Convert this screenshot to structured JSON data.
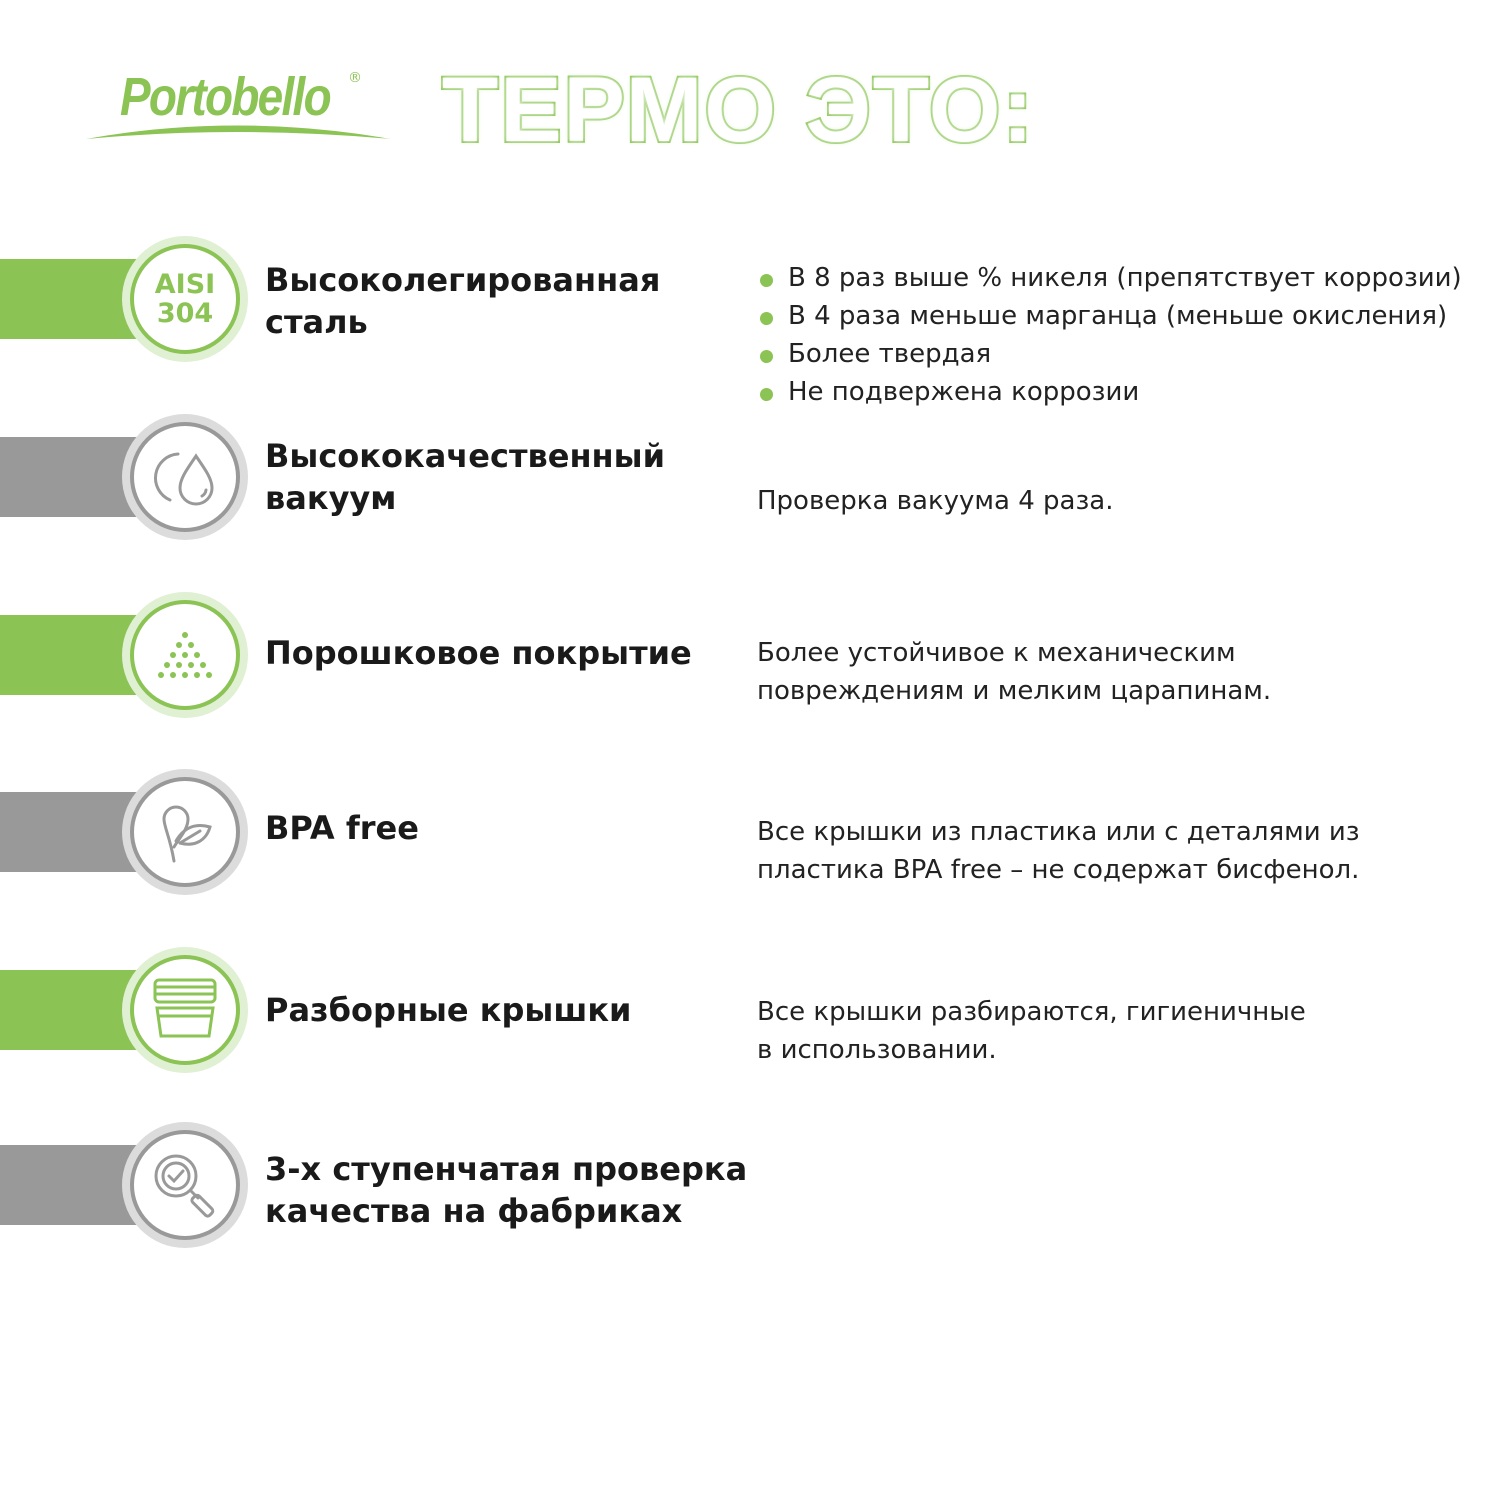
{
  "brand": {
    "logo": "Portobello",
    "registered": "®"
  },
  "title": "ТЕРМО ЭТО:",
  "colors": {
    "green": "#8BC354",
    "green_light": "#DFF0D3",
    "gray": "#999999",
    "gray_light": "#DCDCDC"
  },
  "features": [
    {
      "icon": "aisi-304-badge",
      "icon_text": [
        "AISI",
        "304"
      ],
      "color": "green",
      "heading": [
        "Высоколегированная",
        "сталь"
      ],
      "bullets": [
        "В 8 раз выше % никеля (препятствует коррозии)",
        "В 4 раза меньше марганца (меньше окисления)",
        "Более твердая",
        "Не подвержена коррозии"
      ]
    },
    {
      "icon": "vacuum-drop-icon",
      "color": "gray",
      "heading": [
        "Высококачественный",
        "вакуум"
      ],
      "description": [
        "Проверка вакуума 4 раза."
      ]
    },
    {
      "icon": "powder-dots-icon",
      "color": "green",
      "heading": [
        "Порошковое покрытие"
      ],
      "description": [
        "Более устойчивое к механическим",
        "повреждениям и мелким царапинам."
      ]
    },
    {
      "icon": "leaf-icon",
      "color": "gray",
      "heading": [
        "BPA free"
      ],
      "description": [
        "Все крышки из пластика или с деталями из",
        "пластика BPA free – не содержат бисфенол."
      ]
    },
    {
      "icon": "lid-icon",
      "color": "green",
      "heading": [
        "Разборные крышки"
      ],
      "description": [
        "Все крышки разбираются, гигиеничные",
        "в использовании."
      ]
    },
    {
      "icon": "magnifier-check-icon",
      "color": "gray",
      "heading": [
        "3-х ступенчатая проверка",
        "качества на фабриках"
      ]
    }
  ]
}
